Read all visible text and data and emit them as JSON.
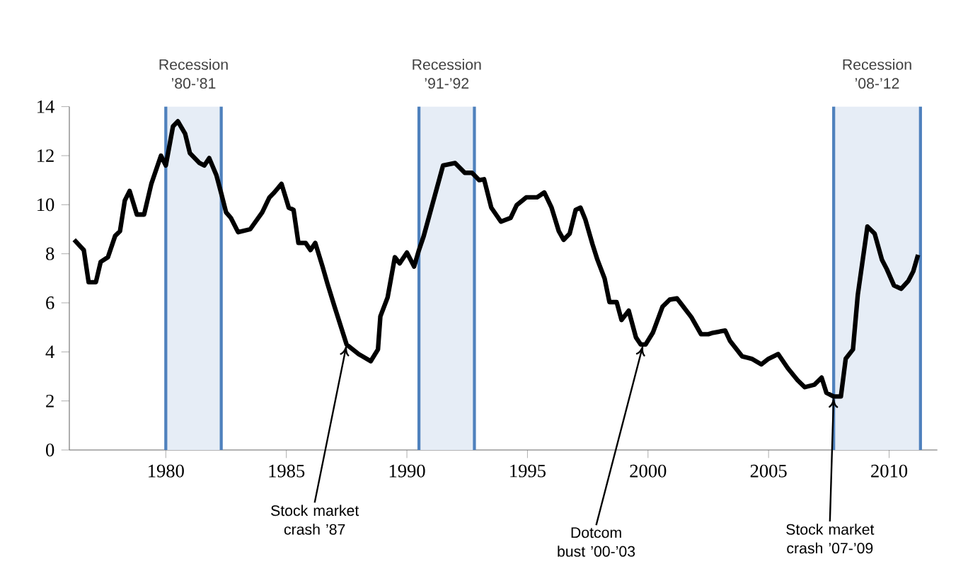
{
  "chart_data": {
    "type": "line",
    "x": [
      1976.2,
      1976.6,
      1976.8,
      1977.1,
      1977.3,
      1977.6,
      1977.9,
      1978.1,
      1978.3,
      1978.5,
      1978.8,
      1979.1,
      1979.4,
      1979.8,
      1980.0,
      1980.3,
      1980.5,
      1980.8,
      1981.0,
      1981.4,
      1981.6,
      1981.8,
      1982.1,
      1982.3,
      1982.5,
      1982.7,
      1983.0,
      1983.5,
      1984.0,
      1984.3,
      1984.5,
      1984.8,
      1985.1,
      1985.3,
      1985.5,
      1985.8,
      1986.0,
      1986.2,
      1986.5,
      1986.7,
      1987.0,
      1987.5,
      1988.0,
      1988.5,
      1988.8,
      1988.9,
      1989.2,
      1989.5,
      1989.7,
      1990.0,
      1990.3,
      1990.5,
      1990.7,
      1991.5,
      1992.0,
      1992.4,
      1992.7,
      1993.0,
      1993.2,
      1993.5,
      1993.9,
      1994.3,
      1994.55,
      1994.95,
      1995.4,
      1995.7,
      1996.0,
      1996.3,
      1996.5,
      1996.75,
      1997.0,
      1997.2,
      1997.4,
      1997.7,
      1997.9,
      1998.2,
      1998.4,
      1998.7,
      1998.9,
      1999.2,
      1999.5,
      1999.7,
      1999.9,
      2000.2,
      2000.6,
      2000.9,
      2001.2,
      2001.5,
      2001.8,
      2002.2,
      2002.5,
      2002.7,
      2003.2,
      2003.4,
      2003.9,
      2004.3,
      2004.7,
      2005.0,
      2005.4,
      2005.8,
      2006.2,
      2006.5,
      2006.9,
      2007.2,
      2007.4,
      2007.7,
      2008.0,
      2008.2,
      2008.5,
      2008.7,
      2009.1,
      2009.4,
      2009.7,
      2009.9,
      2010.2,
      2010.5,
      2010.8,
      2011.0,
      2011.2
    ],
    "series": [
      {
        "color": "#000000",
        "values": [
          8.57,
          8.15,
          6.84,
          6.84,
          7.67,
          7.86,
          8.73,
          8.92,
          10.17,
          10.56,
          9.6,
          9.6,
          10.85,
          12.0,
          11.6,
          13.2,
          13.4,
          12.9,
          12.1,
          11.7,
          11.6,
          11.9,
          11.2,
          10.46,
          9.69,
          9.46,
          8.88,
          9.0,
          9.69,
          10.3,
          10.5,
          10.85,
          9.88,
          9.79,
          8.44,
          8.44,
          8.15,
          8.44,
          7.48,
          6.8,
          5.84,
          4.3,
          3.91,
          3.62,
          4.1,
          5.45,
          6.22,
          7.86,
          7.61,
          8.05,
          7.48,
          8.15,
          8.73,
          11.6,
          11.7,
          11.3,
          11.3,
          11.0,
          11.04,
          9.88,
          9.31,
          9.46,
          9.98,
          10.3,
          10.3,
          10.5,
          9.88,
          8.92,
          8.57,
          8.82,
          9.79,
          9.88,
          9.4,
          8.38,
          7.76,
          6.99,
          6.03,
          6.03,
          5.3,
          5.68,
          4.59,
          4.3,
          4.3,
          4.78,
          5.84,
          6.13,
          6.18,
          5.8,
          5.41,
          4.72,
          4.72,
          4.78,
          4.87,
          4.45,
          3.82,
          3.72,
          3.49,
          3.72,
          3.91,
          3.33,
          2.85,
          2.56,
          2.66,
          2.95,
          2.33,
          2.18,
          2.18,
          3.72,
          4.1,
          6.32,
          9.11,
          8.82,
          7.76,
          7.38,
          6.71,
          6.57,
          6.9,
          7.28,
          7.96
        ]
      }
    ],
    "xlim": [
      1976,
      2012
    ],
    "xticks": [
      1980,
      1985,
      1990,
      1995,
      2000,
      2005,
      2010
    ],
    "ylim": [
      0,
      14
    ],
    "yticks": [
      0,
      2,
      4,
      6,
      8,
      10,
      12,
      14
    ],
    "bands": [
      {
        "axis": "x",
        "from": 1980,
        "to": 1982.3,
        "label": "Recession ’80-’81",
        "color": "#e6edf6"
      },
      {
        "axis": "x",
        "from": 1990.5,
        "to": 1992.8,
        "label": "Recession ’91-’92",
        "color": "#e6edf6"
      },
      {
        "axis": "x",
        "from": 2007.7,
        "to": 2011.3,
        "label": "Recession ’08-’12",
        "color": "#e6edf6"
      }
    ],
    "ref_lines": [
      {
        "axis": "x",
        "value": 1980,
        "color": "#4f81bd"
      },
      {
        "axis": "x",
        "value": 1982.3,
        "color": "#4f81bd"
      },
      {
        "axis": "x",
        "value": 1990.5,
        "color": "#4f81bd"
      },
      {
        "axis": "x",
        "value": 1992.8,
        "color": "#4f81bd"
      },
      {
        "axis": "x",
        "value": 2007.7,
        "color": "#4f81bd"
      },
      {
        "axis": "x",
        "value": 2011.3,
        "color": "#4f81bd"
      }
    ],
    "annotations": [
      {
        "text": "Stock market crash ’87",
        "x": 1987.5,
        "y": 4.3
      },
      {
        "text": "Dotcom bust ’00-’03",
        "x": 1999.8,
        "y": 4.3
      },
      {
        "text": "Stock market crash ’07-’09",
        "x": 2007.7,
        "y": 2.18
      }
    ]
  }
}
